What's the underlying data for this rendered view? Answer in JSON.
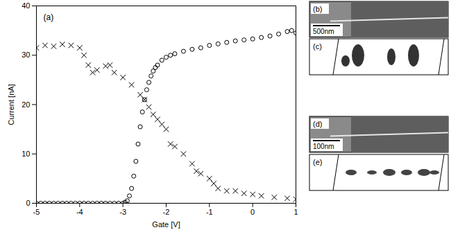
{
  "chart_data": {
    "type": "scatter",
    "panel_label": "(a)",
    "x_label": "Gate [V]",
    "y_label": "Current [nA]",
    "xlim": [
      -5,
      1
    ],
    "xticks": [
      -5,
      -4,
      -3,
      -2,
      -1,
      0,
      1
    ],
    "ylim": [
      0,
      40
    ],
    "yticks": [
      0,
      10,
      20,
      30,
      40
    ],
    "grid": false,
    "series": [
      {
        "marker": "circle",
        "color": "#000000",
        "x": [
          -5,
          -4.9,
          -4.8,
          -4.7,
          -4.6,
          -4.5,
          -4.4,
          -4.3,
          -4.2,
          -4.1,
          -4,
          -3.9,
          -3.8,
          -3.7,
          -3.6,
          -3.5,
          -3.4,
          -3.3,
          -3.2,
          -3.1,
          -3,
          -2.95,
          -2.9,
          -2.85,
          -2.8,
          -2.75,
          -2.7,
          -2.65,
          -2.6,
          -2.55,
          -2.5,
          -2.45,
          -2.4,
          -2.35,
          -2.3,
          -2.25,
          -2.2,
          -2.1,
          -2,
          -1.9,
          -1.8,
          -1.6,
          -1.4,
          -1.2,
          -1,
          -0.8,
          -0.6,
          -0.4,
          -0.2,
          0,
          0.2,
          0.4,
          0.6,
          0.8,
          0.9,
          1
        ],
        "values": [
          0,
          0,
          0,
          0,
          0,
          0,
          0,
          0,
          0,
          0,
          0,
          0,
          0,
          0,
          0,
          0,
          0,
          0,
          0,
          0,
          0,
          0.2,
          0.5,
          1.5,
          3,
          5.5,
          8.5,
          12,
          15.5,
          18.5,
          21,
          23,
          24.5,
          25.8,
          26.8,
          27.5,
          28,
          29,
          29.6,
          30,
          30.3,
          30.8,
          31.2,
          31.5,
          32,
          32.3,
          32.6,
          32.9,
          33.1,
          33.3,
          33.6,
          33.9,
          34.3,
          34.8,
          35,
          34.5
        ]
      },
      {
        "marker": "cross",
        "color": "#000000",
        "x": [
          -5,
          -4.8,
          -4.6,
          -4.4,
          -4.2,
          -4,
          -3.9,
          -3.8,
          -3.7,
          -3.6,
          -3.4,
          -3.3,
          -3.2,
          -3,
          -2.8,
          -2.6,
          -2.5,
          -2.4,
          -2.3,
          -2.2,
          -2.1,
          -2,
          -1.9,
          -1.8,
          -1.6,
          -1.4,
          -1.3,
          -1.2,
          -1,
          -0.9,
          -0.8,
          -0.6,
          -0.4,
          -0.2,
          0,
          0.2,
          0.5,
          0.8,
          1
        ],
        "values": [
          31.5,
          32,
          31.8,
          32.2,
          32,
          31.5,
          30,
          28,
          26.5,
          27,
          27.8,
          28,
          26.5,
          25.5,
          24,
          22,
          21,
          19.5,
          18,
          17,
          16,
          15,
          12,
          11.5,
          10,
          8,
          6.5,
          6,
          5,
          4,
          3,
          2.5,
          2.5,
          2,
          1.8,
          1.5,
          1.2,
          1,
          0.8
        ]
      }
    ]
  },
  "image_panels": [
    {
      "label": "(b)",
      "scale_bar": "500nm"
    },
    {
      "label": "(c)"
    },
    {
      "label": "(d)",
      "scale_bar": "100nm"
    },
    {
      "label": "(e)"
    }
  ]
}
